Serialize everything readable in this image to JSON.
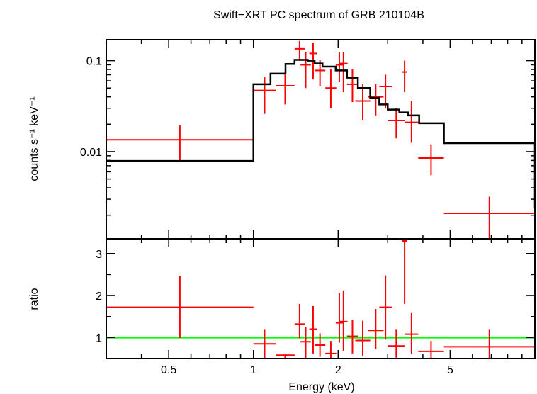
{
  "chart_data": {
    "type": "line",
    "title": "Swift−XRT PC spectrum of GRB 210104B",
    "xlabel": "Energy (keV)",
    "x_scale": "log",
    "xlim": [
      0.3,
      10
    ],
    "x_ticks": [
      {
        "value": 0.5,
        "label": "0.5"
      },
      {
        "value": 1,
        "label": "1"
      },
      {
        "value": 2,
        "label": "2"
      },
      {
        "value": 5,
        "label": "5"
      }
    ],
    "colors": {
      "data": "#ff0000",
      "model": "#000000",
      "unity": "#00ff00"
    },
    "panels": [
      {
        "name": "spectrum",
        "ylabel": "counts s⁻¹ keV⁻¹",
        "y_scale": "log",
        "ylim": [
          0.0011,
          0.17
        ],
        "y_ticks": [
          {
            "value": 0.01,
            "label": "0.01"
          },
          {
            "value": 0.1,
            "label": "0.1"
          }
        ],
        "series": [
          {
            "role": "data",
            "style": "crosses",
            "points": [
              {
                "x_lo": 0.3,
                "x_hi": 1.0,
                "y": 0.0135,
                "y_lo": 0.0078,
                "y_hi": 0.0195
              },
              {
                "x_lo": 1.0,
                "x_hi": 1.2,
                "y": 0.047,
                "y_lo": 0.026,
                "y_hi": 0.066
              },
              {
                "x_lo": 1.2,
                "x_hi": 1.4,
                "y": 0.053,
                "y_lo": 0.033,
                "y_hi": 0.075
              },
              {
                "x_lo": 1.4,
                "x_hi": 1.52,
                "y": 0.135,
                "y_lo": 0.1,
                "y_hi": 0.165
              },
              {
                "x_lo": 1.47,
                "x_hi": 1.6,
                "y": 0.09,
                "y_lo": 0.05,
                "y_hi": 0.125
              },
              {
                "x_lo": 1.58,
                "x_hi": 1.68,
                "y": 0.12,
                "y_lo": 0.062,
                "y_hi": 0.158
              },
              {
                "x_lo": 1.65,
                "x_hi": 1.8,
                "y": 0.078,
                "y_lo": 0.053,
                "y_hi": 0.103
              },
              {
                "x_lo": 1.8,
                "x_hi": 1.97,
                "y": 0.05,
                "y_lo": 0.03,
                "y_hi": 0.08
              },
              {
                "x_lo": 1.96,
                "x_hi": 2.08,
                "y": 0.09,
                "y_lo": 0.058,
                "y_hi": 0.124
              },
              {
                "x_lo": 2.02,
                "x_hi": 2.16,
                "y": 0.093,
                "y_lo": 0.045,
                "y_hi": 0.125
              },
              {
                "x_lo": 2.15,
                "x_hi": 2.35,
                "y": 0.055,
                "y_lo": 0.035,
                "y_hi": 0.08
              },
              {
                "x_lo": 2.3,
                "x_hi": 2.6,
                "y": 0.036,
                "y_lo": 0.022,
                "y_hi": 0.055
              },
              {
                "x_lo": 2.55,
                "x_hi": 2.9,
                "y": 0.04,
                "y_lo": 0.025,
                "y_hi": 0.055
              },
              {
                "x_lo": 2.8,
                "x_hi": 3.1,
                "y": 0.052,
                "y_lo": 0.03,
                "y_hi": 0.07
              },
              {
                "x_lo": 3.0,
                "x_hi": 3.45,
                "y": 0.022,
                "y_lo": 0.014,
                "y_hi": 0.03
              },
              {
                "x_lo": 3.37,
                "x_hi": 3.52,
                "y": 0.075,
                "y_lo": 0.045,
                "y_hi": 0.1
              },
              {
                "x_lo": 3.45,
                "x_hi": 3.85,
                "y": 0.021,
                "y_lo": 0.0125,
                "y_hi": 0.036
              },
              {
                "x_lo": 3.85,
                "x_hi": 4.75,
                "y": 0.0085,
                "y_lo": 0.0055,
                "y_hi": 0.012
              },
              {
                "x_lo": 4.75,
                "x_hi": 10.0,
                "y": 0.0021,
                "y_lo": 0.0011,
                "y_hi": 0.0032
              }
            ]
          },
          {
            "role": "model",
            "style": "step",
            "edges": [
              0.3,
              1.0,
              1.15,
              1.3,
              1.4,
              1.56,
              1.65,
              1.76,
              1.96,
              2.15,
              2.35,
              2.6,
              2.8,
              3.0,
              3.3,
              3.55,
              3.88,
              4.75,
              10.0
            ],
            "values": [
              0.0079,
              0.055,
              0.072,
              0.092,
              0.102,
              0.1,
              0.093,
              0.086,
              0.078,
              0.065,
              0.05,
              0.039,
              0.033,
              0.029,
              0.027,
              0.025,
              0.0205,
              0.0124,
              0.0024
            ]
          }
        ]
      },
      {
        "name": "ratio",
        "ylabel": "ratio",
        "y_scale": "linear",
        "ylim": [
          0.5,
          3.35
        ],
        "y_ticks": [
          {
            "value": 1,
            "label": "1"
          },
          {
            "value": 2,
            "label": "2"
          },
          {
            "value": 3,
            "label": "3"
          }
        ],
        "reference_line": 1,
        "series": [
          {
            "role": "data",
            "style": "crosses",
            "points": [
              {
                "x_lo": 0.3,
                "x_hi": 1.0,
                "y": 1.72,
                "y_lo": 0.99,
                "y_hi": 2.47
              },
              {
                "x_lo": 1.0,
                "x_hi": 1.2,
                "y": 0.85,
                "y_lo": 0.47,
                "y_hi": 1.2
              },
              {
                "x_lo": 1.2,
                "x_hi": 1.4,
                "y": 0.58,
                "y_lo": 0.5,
                "y_hi": 0.6
              },
              {
                "x_lo": 1.4,
                "x_hi": 1.52,
                "y": 1.32,
                "y_lo": 0.98,
                "y_hi": 1.8
              },
              {
                "x_lo": 1.47,
                "x_hi": 1.6,
                "y": 0.9,
                "y_lo": 0.5,
                "y_hi": 1.25
              },
              {
                "x_lo": 1.58,
                "x_hi": 1.68,
                "y": 1.2,
                "y_lo": 0.62,
                "y_hi": 1.75
              },
              {
                "x_lo": 1.65,
                "x_hi": 1.8,
                "y": 0.82,
                "y_lo": 0.54,
                "y_hi": 1.1
              },
              {
                "x_lo": 1.8,
                "x_hi": 1.97,
                "y": 0.62,
                "y_lo": 0.5,
                "y_hi": 0.92
              },
              {
                "x_lo": 1.96,
                "x_hi": 2.08,
                "y": 1.35,
                "y_lo": 0.88,
                "y_hi": 2.05
              },
              {
                "x_lo": 2.02,
                "x_hi": 2.16,
                "y": 1.38,
                "y_lo": 0.68,
                "y_hi": 2.12
              },
              {
                "x_lo": 2.15,
                "x_hi": 2.35,
                "y": 1.03,
                "y_lo": 0.62,
                "y_hi": 1.42
              },
              {
                "x_lo": 2.3,
                "x_hi": 2.6,
                "y": 0.93,
                "y_lo": 0.56,
                "y_hi": 1.4
              },
              {
                "x_lo": 2.55,
                "x_hi": 2.9,
                "y": 1.17,
                "y_lo": 0.72,
                "y_hi": 1.68
              },
              {
                "x_lo": 2.8,
                "x_hi": 3.1,
                "y": 1.72,
                "y_lo": 0.95,
                "y_hi": 2.48
              },
              {
                "x_lo": 3.0,
                "x_hi": 3.45,
                "y": 0.8,
                "y_lo": 0.52,
                "y_hi": 1.2
              },
              {
                "x_lo": 3.45,
                "x_hi": 3.85,
                "y": 1.08,
                "y_lo": 0.6,
                "y_hi": 1.6
              },
              {
                "x_lo": 3.37,
                "x_hi": 3.52,
                "y": 3.3,
                "y_lo": 1.8,
                "y_hi": 3.35
              },
              {
                "x_lo": 3.85,
                "x_hi": 4.75,
                "y": 0.67,
                "y_lo": 0.5,
                "y_hi": 0.92
              },
              {
                "x_lo": 4.75,
                "x_hi": 10.0,
                "y": 0.78,
                "y_lo": 0.5,
                "y_hi": 1.2
              }
            ]
          }
        ]
      }
    ]
  }
}
